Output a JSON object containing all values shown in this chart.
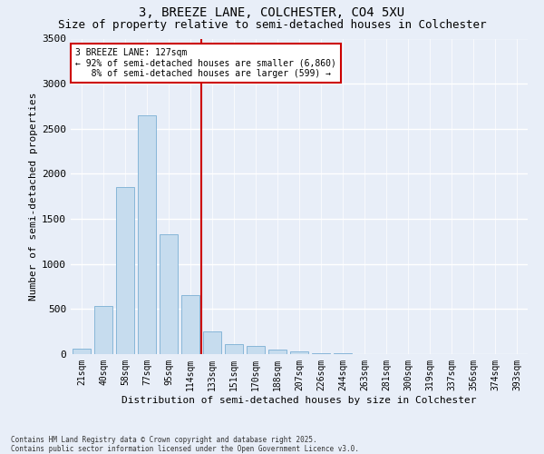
{
  "title_line1": "3, BREEZE LANE, COLCHESTER, CO4 5XU",
  "title_line2": "Size of property relative to semi-detached houses in Colchester",
  "xlabel": "Distribution of semi-detached houses by size in Colchester",
  "ylabel": "Number of semi-detached properties",
  "bar_labels": [
    "21sqm",
    "40sqm",
    "58sqm",
    "77sqm",
    "95sqm",
    "114sqm",
    "133sqm",
    "151sqm",
    "170sqm",
    "188sqm",
    "207sqm",
    "226sqm",
    "244sqm",
    "263sqm",
    "281sqm",
    "300sqm",
    "319sqm",
    "337sqm",
    "356sqm",
    "374sqm",
    "393sqm"
  ],
  "bar_values": [
    60,
    530,
    1850,
    2650,
    1330,
    650,
    250,
    110,
    90,
    50,
    30,
    15,
    10,
    5,
    0,
    0,
    0,
    0,
    0,
    0,
    0
  ],
  "bar_color": "#c6dcee",
  "bar_edge_color": "#7bafd4",
  "vline_x": 5.5,
  "vline_color": "#cc0000",
  "annotation_text": "3 BREEZE LANE: 127sqm\n← 92% of semi-detached houses are smaller (6,860)\n   8% of semi-detached houses are larger (599) →",
  "annotation_box_color": "#ffffff",
  "annotation_border_color": "#cc0000",
  "ylim": [
    0,
    3500
  ],
  "yticks": [
    0,
    500,
    1000,
    1500,
    2000,
    2500,
    3000,
    3500
  ],
  "footnote": "Contains HM Land Registry data © Crown copyright and database right 2025.\nContains public sector information licensed under the Open Government Licence v3.0.",
  "bg_color": "#e8eef8",
  "plot_bg_color": "#e8eef8",
  "grid_color": "#ffffff",
  "title_fontsize": 10,
  "subtitle_fontsize": 9,
  "tick_fontsize": 7,
  "ylabel_fontsize": 8,
  "xlabel_fontsize": 8,
  "annot_fontsize": 7,
  "footnote_fontsize": 5.5
}
